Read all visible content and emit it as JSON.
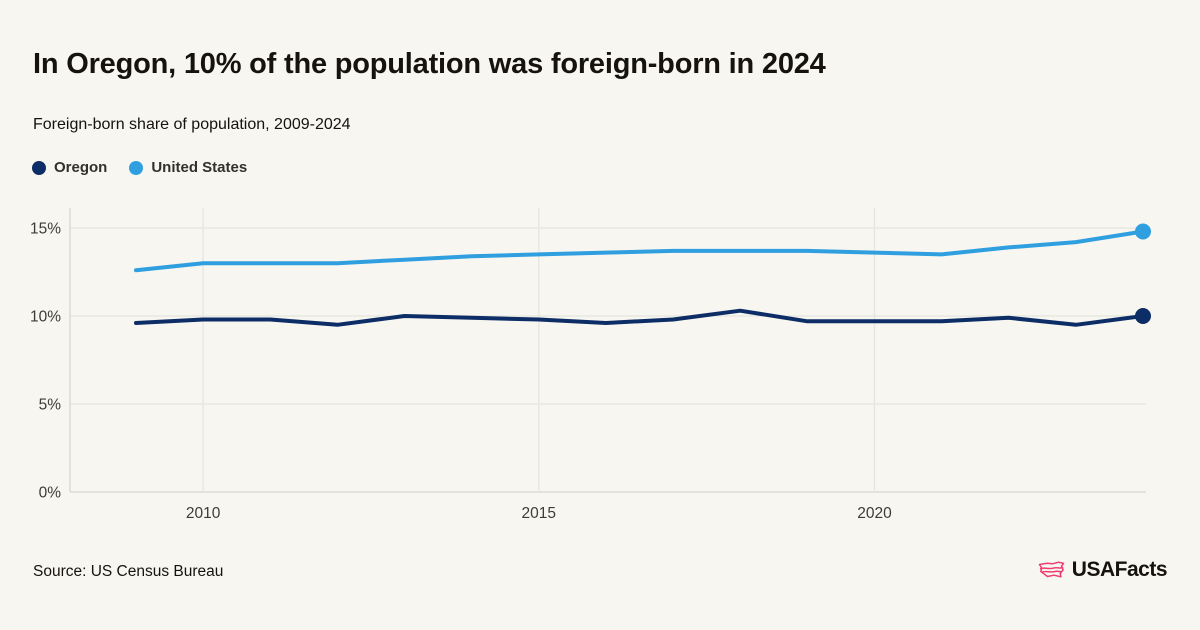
{
  "page": {
    "background": "#f7f6f0"
  },
  "header": {
    "title": "In Oregon, 10% of the population was foreign-born in 2024",
    "subtitle": "Foreign-born share of population, 2009-2024"
  },
  "legend": [
    {
      "label": "Oregon",
      "color": "#0d2d66"
    },
    {
      "label": "United States",
      "color": "#2f9fe0"
    }
  ],
  "chart_data": {
    "type": "line",
    "title": "Foreign-born share of population, 2009-2024",
    "x": [
      2009,
      2010,
      2011,
      2012,
      2013,
      2014,
      2015,
      2016,
      2017,
      2018,
      2019,
      2020,
      2021,
      2022,
      2023,
      2024
    ],
    "series": [
      {
        "name": "Oregon",
        "color": "#0d2d66",
        "values": [
          9.6,
          9.8,
          9.8,
          9.5,
          10.0,
          9.9,
          9.8,
          9.6,
          9.8,
          10.3,
          9.7,
          9.7,
          9.7,
          9.9,
          9.5,
          10.0
        ]
      },
      {
        "name": "United States",
        "color": "#2f9fe0",
        "values": [
          12.6,
          13.0,
          13.0,
          13.0,
          13.2,
          13.4,
          13.5,
          13.6,
          13.7,
          13.7,
          13.7,
          13.6,
          13.5,
          13.9,
          14.2,
          14.8
        ]
      }
    ],
    "xlabel": "",
    "ylabel": "",
    "ylim": [
      0,
      15
    ],
    "yticks": [
      0,
      5,
      10,
      15
    ],
    "ytick_suffix": "%",
    "xticks": [
      2010,
      2015,
      2020
    ],
    "grid": true,
    "legend_position": "top-left",
    "end_dots": true,
    "axis_colors": {
      "gridline": "#e6e6e0",
      "baseline": "#d8d7d0",
      "tick_label": "#3d3b38"
    }
  },
  "footer": {
    "source": "Source: US Census Bureau",
    "logo_text": "USAFacts",
    "logo_color": "#ee3d6e"
  }
}
